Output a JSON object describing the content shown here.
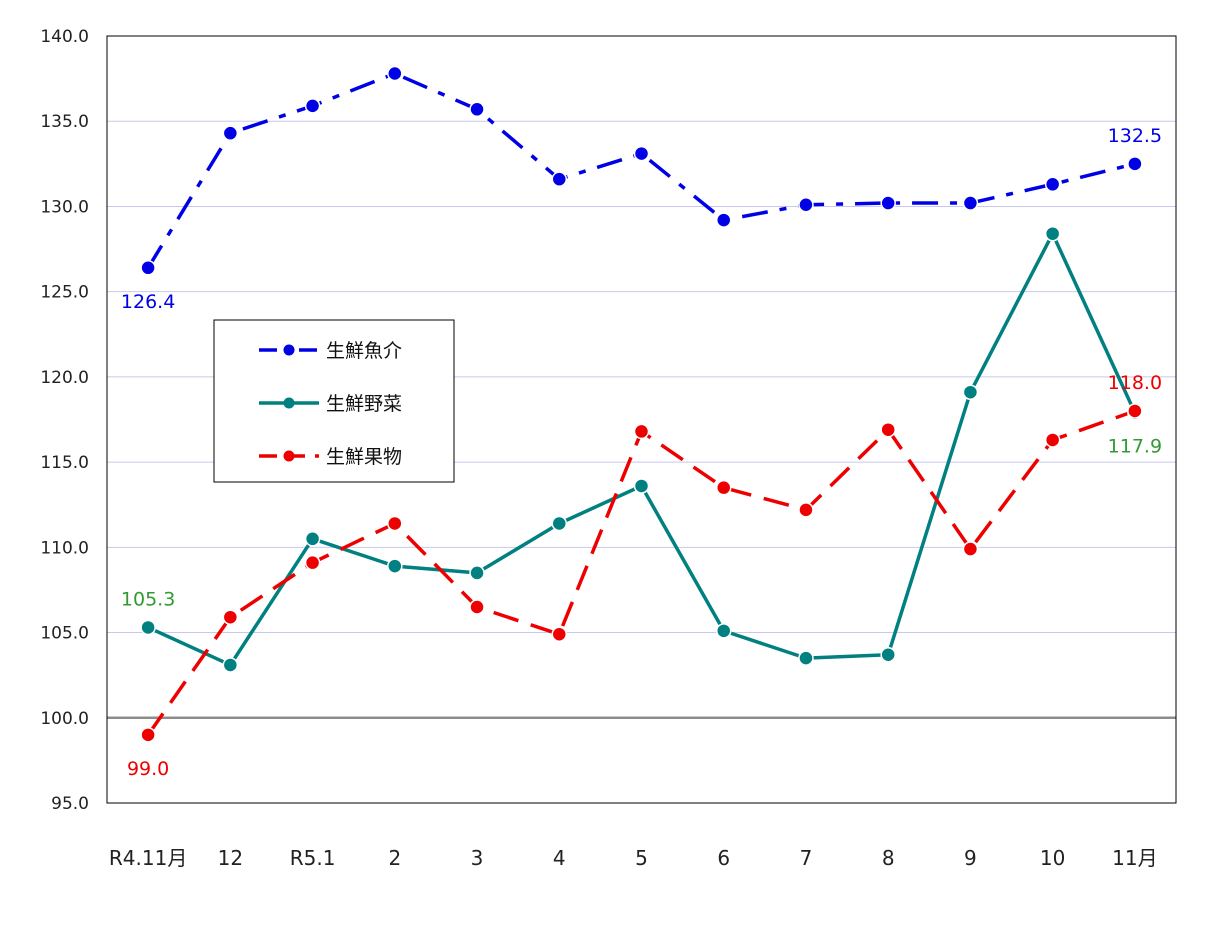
{
  "chart_data": {
    "type": "line",
    "title": "",
    "xlabel": "",
    "ylabel": "",
    "ylim": [
      95.0,
      140.0
    ],
    "ytick_step": 5,
    "yticks": [
      "95.0",
      "100.0",
      "105.0",
      "110.0",
      "115.0",
      "120.0",
      "125.0",
      "130.0",
      "135.0",
      "140.0"
    ],
    "baseline": 100.0,
    "grid": true,
    "legend_position": "upper-left",
    "categories": [
      "R4.11月",
      "12",
      "R5.1",
      "2",
      "3",
      "4",
      "5",
      "6",
      "7",
      "8",
      "9",
      "10",
      "11月"
    ],
    "series": [
      {
        "name": "生鮮魚介",
        "color": "#0000e6",
        "style": "dash-dot",
        "values": [
          126.4,
          134.3,
          135.9,
          137.8,
          135.7,
          131.6,
          133.1,
          129.2,
          130.1,
          130.2,
          130.2,
          131.3,
          132.5
        ],
        "labels": [
          {
            "index": 0,
            "text": "126.4",
            "pos": "below"
          },
          {
            "index": 12,
            "text": "132.5",
            "pos": "above"
          }
        ]
      },
      {
        "name": "生鮮野菜",
        "color": "#008080",
        "style": "solid",
        "label_color": "#339933",
        "values": [
          105.3,
          103.1,
          110.5,
          108.9,
          108.5,
          111.4,
          113.6,
          105.1,
          103.5,
          103.7,
          119.1,
          128.4,
          117.9
        ],
        "labels": [
          {
            "index": 0,
            "text": "105.3",
            "pos": "above"
          },
          {
            "index": 12,
            "text": "117.9",
            "pos": "below"
          }
        ]
      },
      {
        "name": "生鮮果物",
        "color": "#ee0000",
        "style": "dashed",
        "values": [
          99.0,
          105.9,
          109.1,
          111.4,
          106.5,
          104.9,
          116.8,
          113.5,
          112.2,
          116.9,
          109.9,
          116.3,
          118.0
        ],
        "labels": [
          {
            "index": 0,
            "text": "99.0",
            "pos": "below"
          },
          {
            "index": 12,
            "text": "118.0",
            "pos": "above"
          }
        ]
      }
    ]
  }
}
